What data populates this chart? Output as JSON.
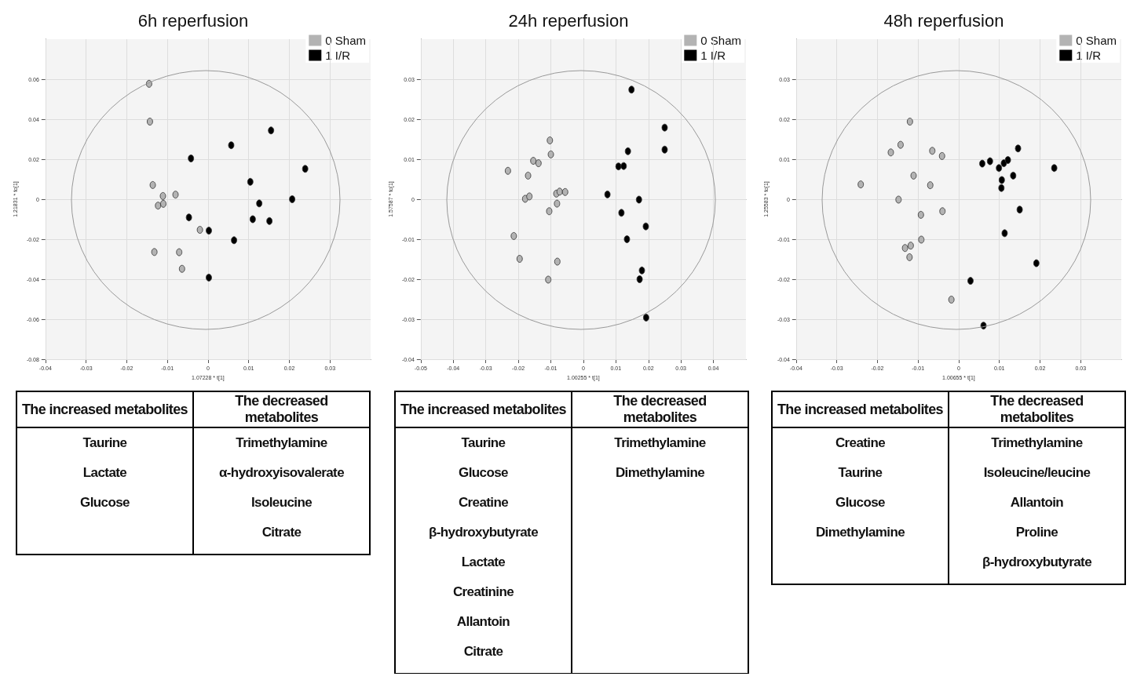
{
  "chart_data": [
    {
      "type": "scatter",
      "title": "6h reperfusion",
      "xlabel": "1.07228 * t[1]",
      "ylabel": "1.21831 * to[1]",
      "xlim": [
        -0.04,
        0.04
      ],
      "xticks": [
        -0.04,
        -0.03,
        -0.02,
        -0.01,
        0,
        0.01,
        0.02,
        0.03
      ],
      "ylim": [
        -0.08,
        0.08
      ],
      "yticks": [
        -0.08,
        -0.06,
        -0.04,
        -0.02,
        0,
        0.02,
        0.04,
        0.06
      ],
      "grid": true,
      "legend": "top right",
      "marker": "circle",
      "series": [
        {
          "name": "0 Sham",
          "color": "#b3b3b3",
          "x": [
            -0.0145,
            -0.0143,
            -0.0136,
            -0.0111,
            -0.008,
            -0.0123,
            -0.011,
            -0.002,
            -0.0132,
            -0.0071,
            -0.0064
          ],
          "values": [
            0.0577,
            0.0388,
            0.0071,
            0.0016,
            0.0023,
            -0.0032,
            -0.0023,
            -0.0153,
            -0.0264,
            -0.0265,
            -0.0348
          ]
        },
        {
          "name": "1 I/R",
          "color": "#000000",
          "x": [
            0.0155,
            0.0057,
            -0.0042,
            0.0239,
            0.0104,
            0.0207,
            0.0126,
            -0.0047,
            0.011,
            0.0151,
            0.0002,
            0.0064,
            0.0002
          ],
          "values": [
            0.0344,
            0.027,
            0.0204,
            0.0152,
            0.0087,
            0,
            -0.0021,
            -0.0091,
            -0.01,
            -0.0109,
            -0.0157,
            -0.0205,
            -0.0392
          ]
        }
      ]
    },
    {
      "type": "scatter",
      "title": "24h reperfusion",
      "xlabel": "1.00255 * t[1]",
      "ylabel": "1.57587 * to[1]",
      "xlim": [
        -0.05,
        0.05
      ],
      "xticks": [
        -0.05,
        -0.04,
        -0.03,
        -0.02,
        -0.01,
        0,
        0.01,
        0.02,
        0.03,
        0.04
      ],
      "ylim": [
        -0.04,
        0.04
      ],
      "yticks": [
        -0.04,
        -0.03,
        -0.02,
        -0.01,
        0,
        0.01,
        0.02,
        0.03
      ],
      "grid": true,
      "legend": "top right",
      "marker": "circle",
      "series": [
        {
          "name": "0 Sham",
          "color": "#b3b3b3",
          "x": [
            -0.0232,
            -0.0154,
            -0.0138,
            -0.0103,
            -0.01,
            -0.017,
            -0.0179,
            -0.0166,
            -0.0083,
            -0.0073,
            -0.0056,
            -0.0081,
            -0.0105,
            -0.0214,
            -0.0196,
            -0.008,
            -0.0108
          ],
          "values": [
            0.0071,
            0.0096,
            0.009,
            0.0147,
            0.0112,
            0.0059,
            0.0001,
            0.0007,
            0.0014,
            0.0019,
            0.0018,
            -0.0011,
            -0.003,
            -0.0092,
            -0.0149,
            -0.0156,
            -0.0201
          ]
        },
        {
          "name": "1 I/R",
          "color": "#000000",
          "x": [
            0.0148,
            0.025,
            0.025,
            0.0137,
            0.0108,
            0.0124,
            0.0074,
            0.0171,
            0.0117,
            0.0192,
            0.0134,
            0.018,
            0.0173,
            0.0193
          ],
          "values": [
            0.0274,
            0.0179,
            0.0124,
            0.012,
            0.0082,
            0.0083,
            0.0012,
            -0.0001,
            -0.0034,
            -0.0068,
            -0.01,
            -0.0178,
            -0.02,
            -0.0296
          ]
        }
      ]
    },
    {
      "type": "scatter",
      "title": "48h reperfusion",
      "xlabel": "1.00655 * t[1]",
      "ylabel": "1.25583 * to[1]",
      "xlim": [
        -0.04,
        0.04
      ],
      "xticks": [
        -0.04,
        -0.03,
        -0.02,
        -0.01,
        0,
        0.01,
        0.02,
        0.03
      ],
      "ylim": [
        -0.04,
        0.04
      ],
      "yticks": [
        -0.04,
        -0.03,
        -0.02,
        -0.01,
        0,
        0.01,
        0.02,
        0.03
      ],
      "grid": true,
      "legend": "top right",
      "marker": "circle",
      "series": [
        {
          "name": "0 Sham",
          "color": "#b3b3b3",
          "x": [
            -0.012,
            -0.0143,
            -0.0167,
            -0.0065,
            -0.0041,
            -0.0111,
            -0.007,
            -0.0241,
            -0.0148,
            -0.004,
            -0.0093,
            -0.0092,
            -0.0118,
            -0.0132,
            -0.0121,
            -0.0018
          ],
          "values": [
            0.0194,
            0.0136,
            0.0117,
            0.0121,
            0.0108,
            0.0059,
            0.0035,
            0.0037,
            -0.0001,
            -0.003,
            -0.0039,
            -0.0101,
            -0.0116,
            -0.0122,
            -0.0145,
            -0.0251
          ]
        },
        {
          "name": "1 I/R",
          "color": "#000000",
          "x": [
            0.0058,
            0.0077,
            0.0099,
            0.0111,
            0.0121,
            0.0146,
            0.0134,
            0.0106,
            0.0105,
            0.0235,
            0.015,
            0.0113,
            0.0191,
            0.0029,
            0.0061
          ],
          "values": [
            0.0089,
            0.0095,
            0.0078,
            0.009,
            0.0098,
            0.0127,
            0.0059,
            0.0048,
            0.0028,
            0.0078,
            -0.0026,
            -0.0085,
            -0.016,
            -0.0204,
            -0.0316
          ]
        }
      ]
    },
    {
      "type": "other",
      "categories": [
        "The increased metabolites",
        "The decreased metabolites"
      ],
      "cell_labels": [
        [
          "Taurine",
          "Trimethylamine"
        ],
        [
          "Lactate",
          "α-hydroxyisovalerate"
        ],
        [
          "Glucose",
          "Isoleucine"
        ],
        [
          null,
          "Citrate"
        ]
      ]
    },
    {
      "type": "other",
      "categories": [
        "The increased metabolites",
        "The decreased metabolites"
      ],
      "cell_labels": [
        [
          "Taurine",
          "Trimethylamine"
        ],
        [
          "Glucose",
          "Dimethylamine"
        ],
        [
          "Creatine",
          null
        ],
        [
          "β-hydroxybutyrate",
          null
        ],
        [
          "Lactate",
          null
        ],
        [
          "Creatinine",
          null
        ],
        [
          "Allantoin",
          null
        ],
        [
          "Citrate",
          null
        ]
      ]
    },
    {
      "type": "other",
      "categories": [
        "The increased metabolites",
        "The decreased metabolites"
      ],
      "cell_labels": [
        [
          "Creatine",
          "Trimethylamine"
        ],
        [
          "Taurine",
          "Isoleucine/leucine"
        ],
        [
          "Glucose",
          "Allantoin"
        ],
        [
          "Dimethylamine",
          "Proline"
        ],
        [
          null,
          "β-hydroxybutyrate"
        ]
      ]
    }
  ]
}
